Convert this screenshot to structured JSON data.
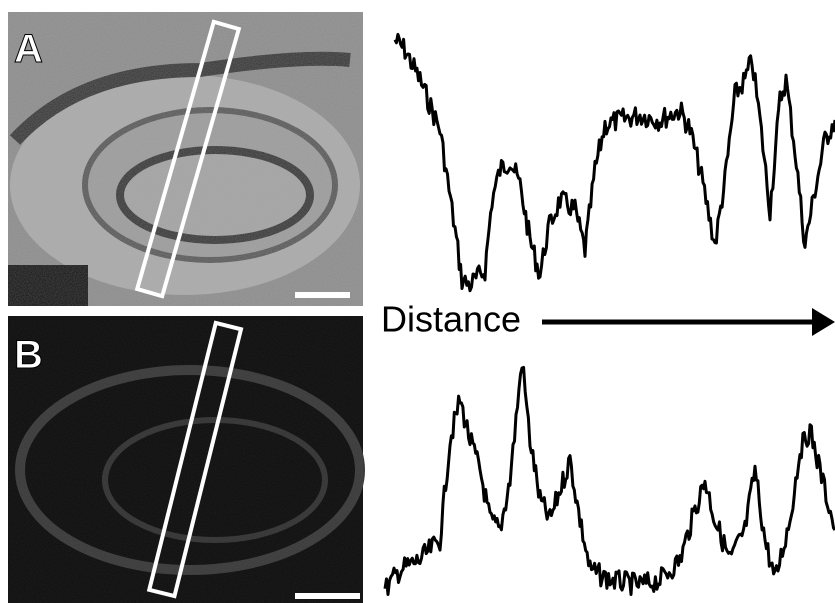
{
  "panels": [
    {
      "label": "A"
    },
    {
      "label": "B"
    }
  ],
  "profile_axis": {
    "label": "Distance"
  }
}
